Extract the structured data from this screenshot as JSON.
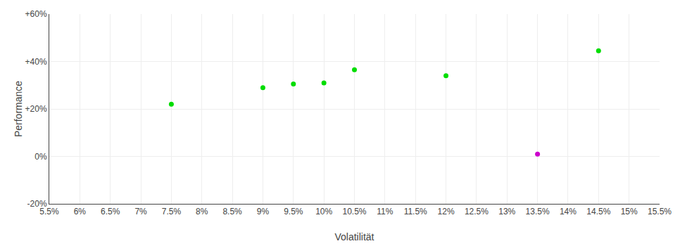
{
  "chart_data": {
    "type": "scatter",
    "xlabel": "Volatilität",
    "ylabel": "Performance",
    "xlim": [
      0.055,
      0.155
    ],
    "ylim": [
      -0.2,
      0.6
    ],
    "xticks": [
      {
        "value": 0.055,
        "label": "5.5%"
      },
      {
        "value": 0.06,
        "label": "6%"
      },
      {
        "value": 0.065,
        "label": "6.5%"
      },
      {
        "value": 0.07,
        "label": "7%"
      },
      {
        "value": 0.075,
        "label": "7.5%"
      },
      {
        "value": 0.08,
        "label": "8%"
      },
      {
        "value": 0.085,
        "label": "8.5%"
      },
      {
        "value": 0.09,
        "label": "9%"
      },
      {
        "value": 0.095,
        "label": "9.5%"
      },
      {
        "value": 0.1,
        "label": "10%"
      },
      {
        "value": 0.105,
        "label": "10.5%"
      },
      {
        "value": 0.11,
        "label": "11%"
      },
      {
        "value": 0.115,
        "label": "11.5%"
      },
      {
        "value": 0.12,
        "label": "12%"
      },
      {
        "value": 0.125,
        "label": "12.5%"
      },
      {
        "value": 0.13,
        "label": "13%"
      },
      {
        "value": 0.135,
        "label": "13.5%"
      },
      {
        "value": 0.14,
        "label": "14%"
      },
      {
        "value": 0.145,
        "label": "14.5%"
      },
      {
        "value": 0.15,
        "label": "15%"
      },
      {
        "value": 0.155,
        "label": "15.5%"
      }
    ],
    "yticks": [
      {
        "value": -0.2,
        "label": "-20%"
      },
      {
        "value": 0.0,
        "label": "0%"
      },
      {
        "value": 0.2,
        "label": "+20%"
      },
      {
        "value": 0.4,
        "label": "+40%"
      },
      {
        "value": 0.6,
        "label": "+60%"
      }
    ],
    "grid": true,
    "series": [
      {
        "color": "#00dd00",
        "x": [
          0.075,
          0.09,
          0.095,
          0.1,
          0.105,
          0.12,
          0.145
        ],
        "values": [
          0.22,
          0.29,
          0.305,
          0.31,
          0.365,
          0.34,
          0.445
        ]
      },
      {
        "color": "#cc00cc",
        "x": [
          0.135
        ],
        "values": [
          0.01
        ]
      }
    ]
  }
}
